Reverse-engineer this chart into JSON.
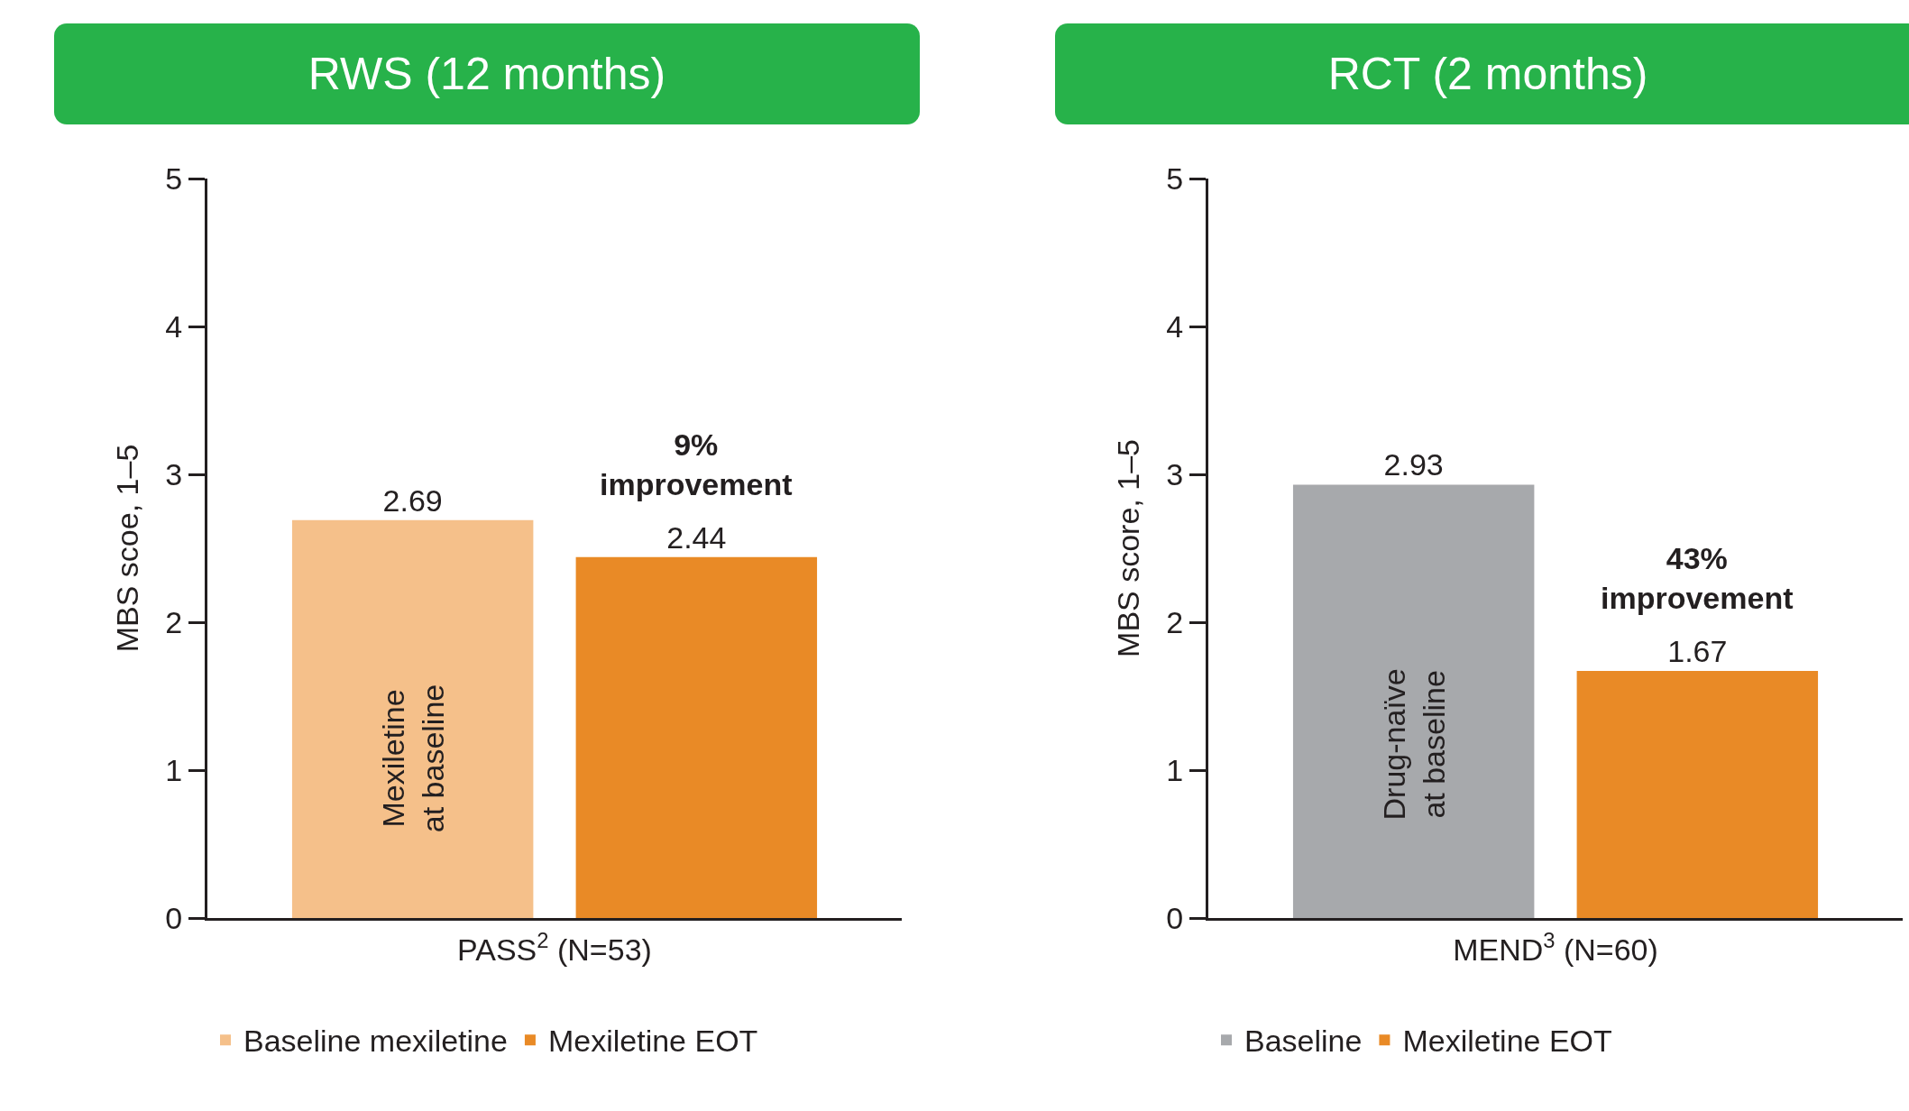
{
  "chart_data": [
    {
      "type": "bar",
      "title": "RWS (12 months)",
      "xlabel": "PASS$^{2}$ (N=53)",
      "ylabel": "MBS scoe, 1–5",
      "categories": [
        null
      ],
      "series": [
        {
          "name": "Baseline mexiletine",
          "color": "#f5c08a",
          "values": [
            2.69
          ]
        },
        {
          "name": "Mexiletine EOT",
          "color": "#e98a26",
          "values": [
            2.44
          ]
        }
      ],
      "ylim": [
        0,
        5
      ],
      "yticks": [
        0,
        1,
        2,
        3,
        4,
        5
      ],
      "grid": false,
      "legend": "bottom",
      "data_labels": true,
      "annotations": [
        "Mexiletine at baseline",
        "9% improvement"
      ]
    },
    {
      "type": "bar",
      "title": "RCT (2 months)",
      "xlabel": "MEND$^{3}$ (N=60)",
      "ylabel": "MBS score, 1–5",
      "categories": [
        null
      ],
      "series": [
        {
          "name": "Baseline",
          "color": "#a7a9ac",
          "values": [
            2.93
          ]
        },
        {
          "name": "Mexiletine EOT",
          "color": "#e98a26",
          "values": [
            1.67
          ]
        }
      ],
      "ylim": [
        0,
        5
      ],
      "yticks": [
        0,
        1,
        2,
        3,
        4,
        5
      ],
      "grid": false,
      "legend": "bottom",
      "data_labels": true,
      "annotations": [
        "Drug-naïve at baseline",
        "43% improvement"
      ]
    }
  ]
}
